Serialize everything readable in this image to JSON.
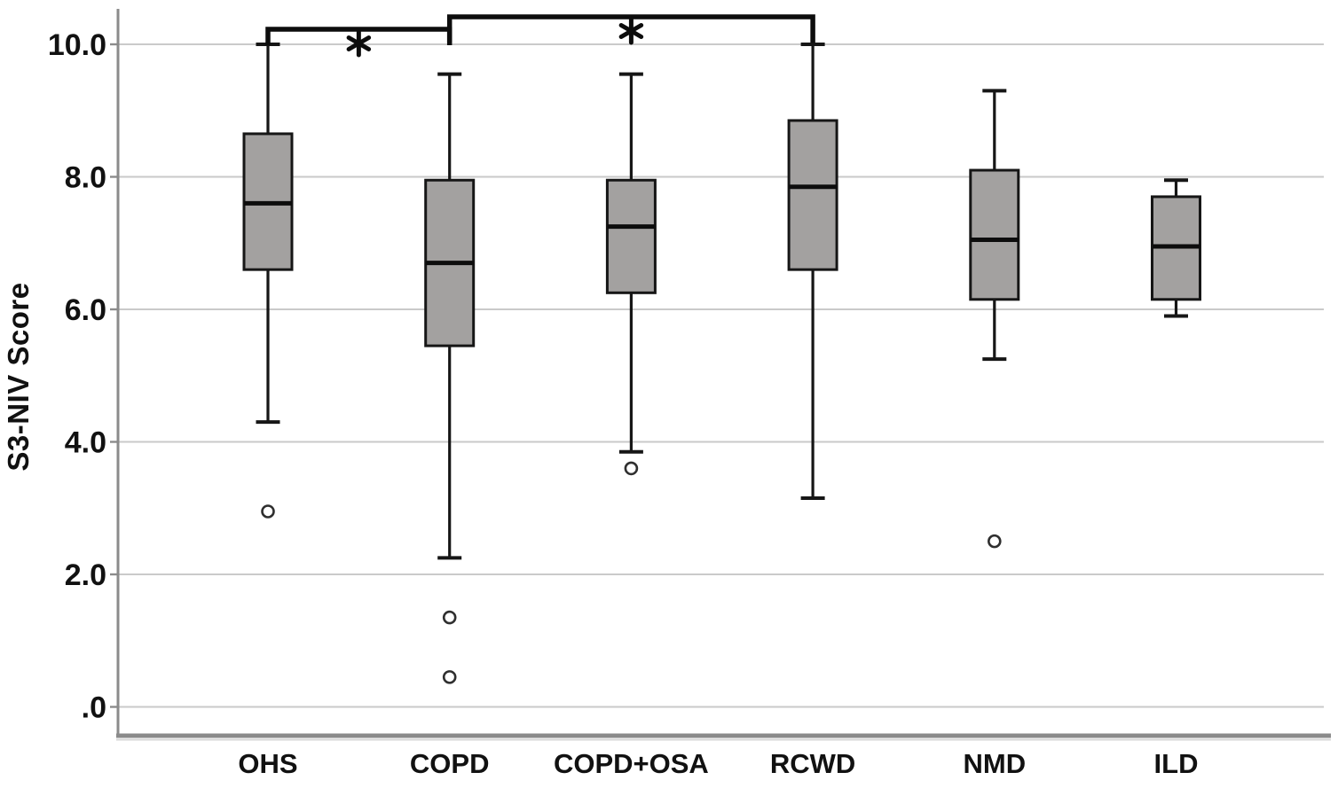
{
  "chart_data": {
    "type": "boxplot",
    "title": "",
    "xlabel": "",
    "ylabel": "S3-NIV Score",
    "ylim": [
      -0.45,
      10.55
    ],
    "yticks": [
      0.0,
      2.0,
      4.0,
      6.0,
      8.0,
      10.0
    ],
    "ytick_labels": [
      ".0",
      "2.0",
      "4.0",
      "6.0",
      "8.0",
      "10.0"
    ],
    "grid": true,
    "legend": "none",
    "categories": [
      "OHS",
      "COPD",
      "COPD+OSA",
      "RCWD",
      "NMD",
      "ILD"
    ],
    "series": [
      {
        "category": "OHS",
        "whisker_low": 4.3,
        "q1": 6.6,
        "median": 7.6,
        "q3": 8.65,
        "whisker_high": 10.0,
        "outliers": [
          2.95
        ]
      },
      {
        "category": "COPD",
        "whisker_low": 2.25,
        "q1": 5.45,
        "median": 6.7,
        "q3": 7.95,
        "whisker_high": 9.55,
        "outliers": [
          1.35,
          0.45
        ]
      },
      {
        "category": "COPD+OSA",
        "whisker_low": 3.85,
        "q1": 6.25,
        "median": 7.25,
        "q3": 7.95,
        "whisker_high": 9.55,
        "outliers": [
          3.6
        ]
      },
      {
        "category": "RCWD",
        "whisker_low": 3.15,
        "q1": 6.6,
        "median": 7.85,
        "q3": 8.85,
        "whisker_high": 10.0,
        "outliers": []
      },
      {
        "category": "NMD",
        "whisker_low": 5.25,
        "q1": 6.15,
        "median": 7.05,
        "q3": 8.1,
        "whisker_high": 9.3,
        "outliers": [
          2.5
        ]
      },
      {
        "category": "ILD",
        "whisker_low": 5.9,
        "q1": 6.15,
        "median": 6.95,
        "q3": 7.7,
        "whisker_high": 7.95,
        "outliers": []
      }
    ],
    "significance_brackets": [
      {
        "from": "OHS",
        "to": "COPD",
        "label": "*"
      },
      {
        "from": "COPD",
        "to": "RCWD",
        "label": "*"
      }
    ],
    "colors": {
      "box_fill": "#a3a1a0",
      "box_border": "#161616",
      "median": "#0d0d0d",
      "whisker": "#161616",
      "outlier_stroke": "#2f2f2f",
      "gridline": "#cacaca",
      "axis": "#8b8b8b",
      "axis_shadow": "#d8d8d8",
      "bracket": "#0d0d0d",
      "text": "#111111"
    }
  }
}
